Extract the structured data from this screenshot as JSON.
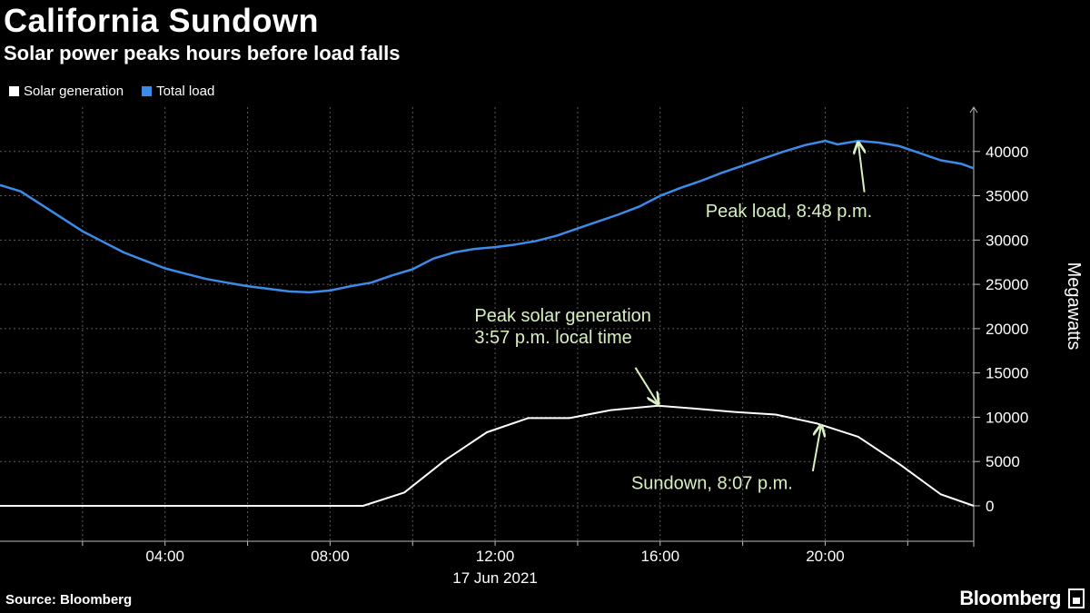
{
  "chart_data": {
    "type": "line",
    "title": "California Sundown",
    "subtitle": "Solar power peaks hours before load falls",
    "ylabel": "Megawatts",
    "xlabel": "17 Jun 2021",
    "ylim": [
      -4000,
      45000
    ],
    "xlim": [
      0,
      23.6
    ],
    "y_ticks": [
      0,
      5000,
      10000,
      15000,
      20000,
      25000,
      30000,
      35000,
      40000
    ],
    "x_ticks": [
      {
        "hour": 4,
        "label": "04:00"
      },
      {
        "hour": 8,
        "label": "08:00"
      },
      {
        "hour": 12,
        "label": "12:00"
      },
      {
        "hour": 16,
        "label": "16:00"
      },
      {
        "hour": 20,
        "label": "20:00"
      }
    ],
    "x_gridlines": [
      2,
      4,
      6,
      8,
      10,
      12,
      14,
      16,
      18,
      20,
      22
    ],
    "grid": true,
    "legend_position": "top-left",
    "series": [
      {
        "name": "Solar generation",
        "color": "#ffffff",
        "points": [
          [
            0,
            0
          ],
          [
            8.8,
            0
          ],
          [
            9.8,
            1500
          ],
          [
            10.8,
            5200
          ],
          [
            11.8,
            8300
          ],
          [
            12.8,
            9900
          ],
          [
            13.8,
            9900
          ],
          [
            14.8,
            10800
          ],
          [
            15.95,
            11300
          ],
          [
            16.8,
            11000
          ],
          [
            17.8,
            10600
          ],
          [
            18.8,
            10300
          ],
          [
            19.8,
            9300
          ],
          [
            20.8,
            7800
          ],
          [
            21.8,
            4700
          ],
          [
            22.8,
            1300
          ],
          [
            23.6,
            0
          ]
        ]
      },
      {
        "name": "Total load",
        "color": "#3d8be8",
        "points": [
          [
            0,
            36200
          ],
          [
            0.5,
            35500
          ],
          [
            1,
            34000
          ],
          [
            1.5,
            32500
          ],
          [
            2,
            31000
          ],
          [
            2.5,
            29800
          ],
          [
            3,
            28600
          ],
          [
            3.5,
            27700
          ],
          [
            4,
            26800
          ],
          [
            4.5,
            26200
          ],
          [
            5,
            25600
          ],
          [
            5.5,
            25200
          ],
          [
            6,
            24800
          ],
          [
            6.5,
            24500
          ],
          [
            7,
            24200
          ],
          [
            7.5,
            24100
          ],
          [
            8,
            24300
          ],
          [
            8.5,
            24800
          ],
          [
            9,
            25200
          ],
          [
            9.5,
            26000
          ],
          [
            10,
            26700
          ],
          [
            10.5,
            27900
          ],
          [
            11,
            28600
          ],
          [
            11.5,
            29000
          ],
          [
            12,
            29200
          ],
          [
            12.5,
            29500
          ],
          [
            13,
            29900
          ],
          [
            13.5,
            30500
          ],
          [
            14,
            31300
          ],
          [
            14.5,
            32100
          ],
          [
            15,
            32900
          ],
          [
            15.5,
            33800
          ],
          [
            16,
            35000
          ],
          [
            16.5,
            35900
          ],
          [
            17,
            36700
          ],
          [
            17.5,
            37600
          ],
          [
            18,
            38400
          ],
          [
            18.5,
            39200
          ],
          [
            19,
            40000
          ],
          [
            19.5,
            40700
          ],
          [
            20,
            41200
          ],
          [
            20.3,
            40800
          ],
          [
            20.8,
            41200
          ],
          [
            21.3,
            41000
          ],
          [
            21.8,
            40600
          ],
          [
            22.3,
            39800
          ],
          [
            22.8,
            39000
          ],
          [
            23.3,
            38600
          ],
          [
            23.6,
            38100
          ]
        ]
      }
    ],
    "annotations": [
      {
        "lines": [
          "Peak load, 8:48 p.m."
        ],
        "text_x": 17.1,
        "text_y": 32600,
        "arrow_from": [
          20.95,
          35400
        ],
        "arrow_to": [
          20.8,
          41000
        ]
      },
      {
        "lines": [
          "Peak solar generation",
          "3:57 p.m. local time"
        ],
        "text_x": 11.5,
        "text_y": 20800,
        "arrow_from": [
          15.4,
          15600
        ],
        "arrow_to": [
          15.95,
          11500
        ]
      },
      {
        "lines": [
          "Sundown, 8:07 p.m."
        ],
        "text_x": 15.3,
        "text_y": 1900,
        "arrow_from": [
          19.7,
          3900
        ],
        "arrow_to": [
          19.9,
          9100
        ]
      }
    ]
  },
  "legend": {
    "items": [
      {
        "label": "Solar generation",
        "color": "#ffffff"
      },
      {
        "label": "Total load",
        "color": "#3d8be8"
      }
    ]
  },
  "footer": {
    "source": "Source: Bloomberg",
    "brand": "Bloomberg"
  }
}
